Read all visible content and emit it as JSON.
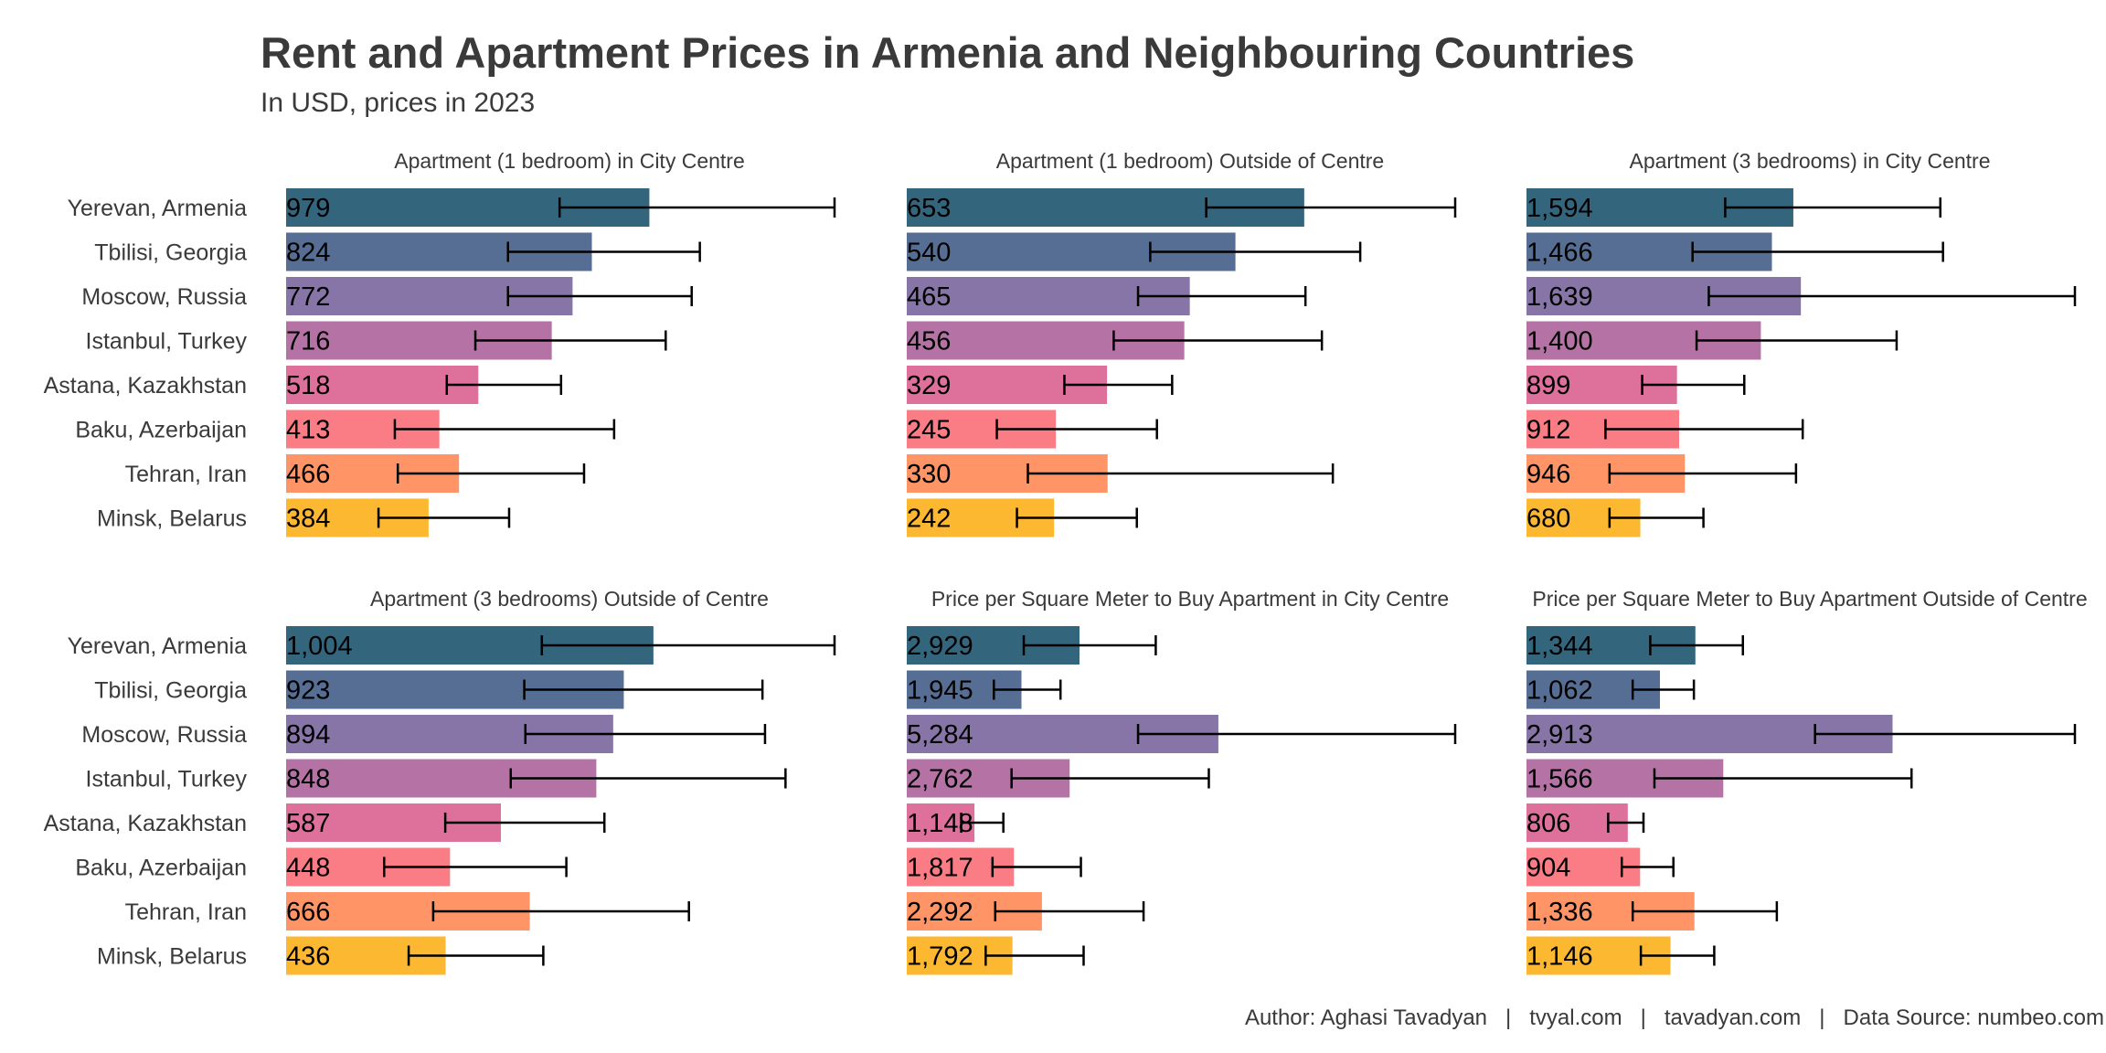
{
  "header": {
    "title": "Rent and Apartment Prices in Armenia and Neighbouring Countries",
    "subtitle": "In USD, prices in 2023"
  },
  "footer": {
    "text": "Author: Aghasi Tavadyan   |   tvyal.com   |   tavadyan.com   |   Data Source: numbeo.com"
  },
  "chart_data": {
    "type": "bar",
    "orientation": "horizontal",
    "title": "Rent and Apartment Prices in Armenia and Neighbouring Countries",
    "subtitle": "In USD, prices in 2023",
    "categories": [
      "Yerevan, Armenia",
      "Tbilisi, Georgia",
      "Moscow, Russia",
      "Istanbul, Turkey",
      "Astana, Kazakhstan",
      "Baku, Azerbaijan",
      "Tehran, Iran",
      "Minsk, Belarus"
    ],
    "colors": [
      "#33667d",
      "#576e94",
      "#8675a6",
      "#b573a5",
      "#de719c",
      "#fa7c85",
      "#ff9466",
      "#fdb832"
    ],
    "grid": false,
    "legend": "none",
    "panels": [
      {
        "title": "Apartment (1 bedroom) in City Centre",
        "values": [
          979,
          824,
          772,
          716,
          518,
          413,
          466,
          384
        ],
        "labels": [
          "979",
          "824",
          "772",
          "716",
          "518",
          "413",
          "466",
          "384"
        ],
        "range_min": [
          737,
          598,
          598,
          510,
          433,
          293,
          301,
          249
        ],
        "range_max": [
          1478,
          1115,
          1093,
          1023,
          741,
          884,
          803,
          601
        ]
      },
      {
        "title": "Apartment (1 bedroom) Outside of Centre",
        "values": [
          653,
          540,
          465,
          456,
          329,
          245,
          330,
          242
        ],
        "labels": [
          "653",
          "540",
          "465",
          "456",
          "329",
          "245",
          "330",
          "242"
        ],
        "range_min": [
          492,
          400,
          380,
          340,
          259,
          148,
          199,
          181
        ],
        "range_max": [
          901,
          745,
          655,
          682,
          436,
          411,
          700,
          378
        ]
      },
      {
        "title": "Apartment (3 bedrooms) in City Centre",
        "values": [
          1594,
          1466,
          1639,
          1400,
          899,
          912,
          946,
          680
        ],
        "labels": [
          "1,594",
          "1,466",
          "1,639",
          "1,400",
          "899",
          "912",
          "946",
          "680"
        ],
        "range_min": [
          1187,
          992,
          1089,
          1016,
          691,
          472,
          496,
          496
        ],
        "range_max": [
          2472,
          2488,
          3276,
          2211,
          1301,
          1650,
          1610,
          1057
        ]
      },
      {
        "title": "Apartment (3 bedrooms) Outside of Centre",
        "values": [
          1004,
          923,
          894,
          848,
          587,
          448,
          666,
          436
        ],
        "labels": [
          "1,004",
          "923",
          "894",
          "848",
          "587",
          "448",
          "666",
          "436"
        ],
        "range_min": [
          699,
          651,
          654,
          614,
          435,
          268,
          402,
          335
        ],
        "range_max": [
          1499,
          1302,
          1309,
          1365,
          870,
          766,
          1101,
          703
        ]
      },
      {
        "title": "Price per Square Meter to Buy Apartment in City Centre",
        "values": [
          2929,
          1945,
          5284,
          2762,
          1148,
          1817,
          2292,
          1792
        ],
        "labels": [
          "2,929",
          "1,945",
          "5,284",
          "2,762",
          "1,148",
          "1,817",
          "2,292",
          "1,792"
        ],
        "range_min": [
          1984,
          1477,
          3922,
          1777,
          923,
          1454,
          1500,
          1338
        ],
        "range_max": [
          4222,
          2607,
          9299,
          5122,
          1638,
          2953,
          4015,
          2999
        ]
      },
      {
        "title": "Price per Square Meter to Buy Apartment Outside of Centre",
        "values": [
          1344,
          1062,
          2913,
          1566,
          806,
          904,
          1336,
          1146
        ],
        "labels": [
          "1,344",
          "1,062",
          "2,913",
          "1,566",
          "806",
          "904",
          "1,336",
          "1,146"
        ],
        "range_min": [
          985,
          845,
          2296,
          1018,
          650,
          758,
          845,
          910
        ],
        "range_max": [
          1722,
          1332,
          4364,
          3064,
          931,
          1169,
          1992,
          1494
        ]
      }
    ]
  }
}
